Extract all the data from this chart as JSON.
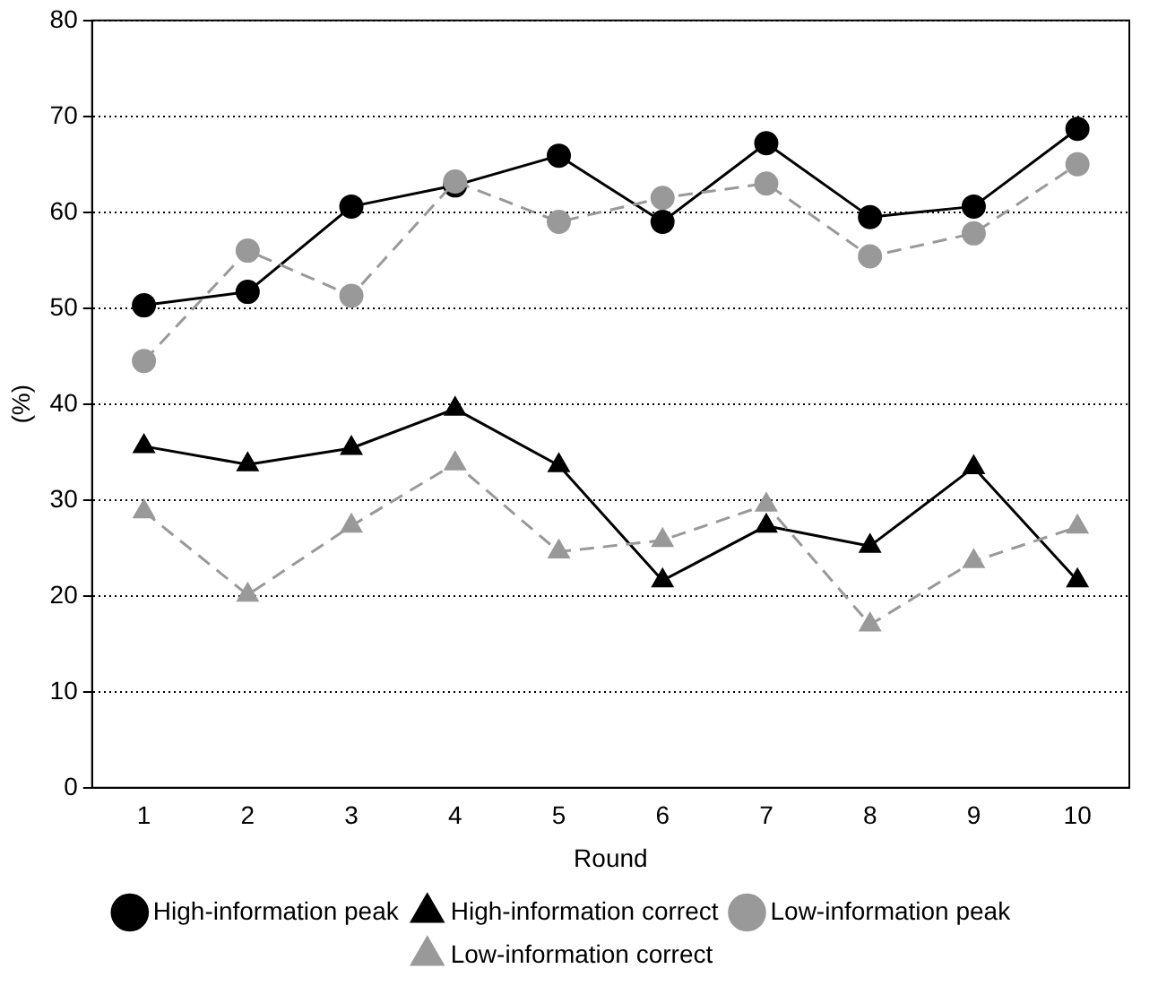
{
  "chart_data": {
    "type": "line",
    "xlabel": "Round",
    "ylabel": "(%)",
    "categories": [
      "1",
      "2",
      "3",
      "4",
      "5",
      "6",
      "7",
      "8",
      "9",
      "10"
    ],
    "ylim": [
      0,
      80
    ],
    "yticks": [
      0,
      10,
      20,
      30,
      40,
      50,
      60,
      70,
      80
    ],
    "grid": "y",
    "legend": "bottom",
    "series": [
      {
        "name": "High-information peak",
        "color": "#000000",
        "marker": "circle",
        "line_style": "solid",
        "values": [
          50.3,
          51.7,
          60.6,
          62.8,
          65.9,
          59.0,
          67.2,
          59.5,
          60.6,
          68.7
        ]
      },
      {
        "name": "High-information correct",
        "color": "#000000",
        "marker": "triangle",
        "line_style": "solid",
        "values": [
          35.6,
          33.7,
          35.4,
          39.5,
          33.6,
          21.6,
          27.3,
          25.2,
          33.4,
          21.6
        ]
      },
      {
        "name": "Low-information peak",
        "color": "#999999",
        "marker": "circle",
        "line_style": "dashed",
        "values": [
          44.5,
          56.0,
          51.3,
          63.2,
          59.0,
          61.5,
          63.0,
          55.4,
          57.8,
          65.0
        ]
      },
      {
        "name": "Low-information correct",
        "color": "#999999",
        "marker": "triangle",
        "line_style": "dashed",
        "values": [
          28.8,
          20.1,
          27.3,
          33.8,
          24.6,
          25.8,
          29.5,
          17.0,
          23.6,
          27.2
        ]
      }
    ]
  }
}
